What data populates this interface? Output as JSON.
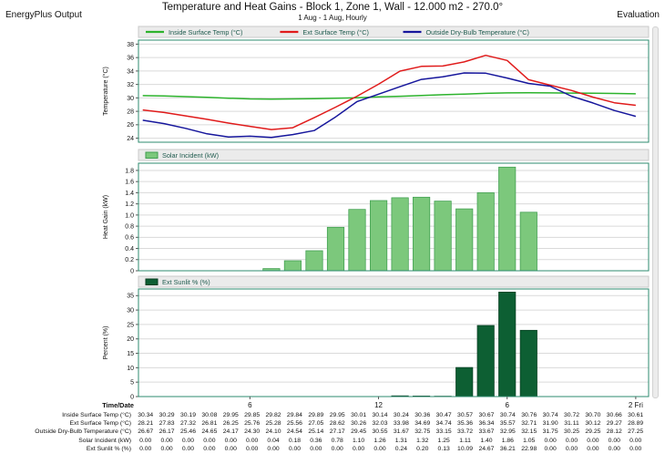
{
  "header": {
    "app_label": "EnergyPlus Output",
    "title": "Temperature and Heat Gains - Block 1, Zone 1, Wall - 12.000 m2 - 270.0°",
    "subtitle": "1 Aug - 1 Aug, Hourly",
    "right_label": "Evaluation"
  },
  "colors": {
    "inside_surface": "#2db32d",
    "ext_surface": "#e01b1b",
    "outside_drybulb": "#16169c",
    "solar_fill": "#7cc87c",
    "solar_border": "#3f9e4f",
    "sunlit_fill": "#0d5f33",
    "sunlit_border": "#083f22",
    "frame": "#2e8b6f",
    "grid": "#dadada",
    "legend_bg": "#ebebeb",
    "legend_border": "#c9c9c9",
    "legend_text": "#1f5b4e"
  },
  "xaxis": {
    "label": "Time/Date",
    "ticks": [
      {
        "hour": 6,
        "label": "6"
      },
      {
        "hour": 12,
        "label": "12"
      },
      {
        "hour": 18,
        "label": "6"
      },
      {
        "hour": 24,
        "label": "2 Fri"
      }
    ]
  },
  "chart_data": [
    {
      "type": "line",
      "ylabel": "Temperature (°C)",
      "ylim": [
        23.4,
        38.6
      ],
      "yticks": [
        24,
        26,
        28,
        30,
        32,
        34,
        36,
        38
      ],
      "ytick_labels": [
        "24",
        "26",
        "28",
        "30",
        "32",
        "34",
        "36",
        "38"
      ],
      "x_hours": [
        1,
        2,
        3,
        4,
        5,
        6,
        7,
        8,
        9,
        10,
        11,
        12,
        13,
        14,
        15,
        16,
        17,
        18,
        19,
        20,
        21,
        22,
        23,
        24
      ],
      "series": [
        {
          "name": "Inside Surface Temp (°C)",
          "color_key": "inside_surface",
          "values": [
            30.34,
            30.29,
            30.19,
            30.08,
            29.95,
            29.85,
            29.82,
            29.84,
            29.89,
            29.95,
            30.01,
            30.14,
            30.24,
            30.36,
            30.47,
            30.57,
            30.67,
            30.74,
            30.76,
            30.74,
            30.72,
            30.7,
            30.66,
            30.61
          ]
        },
        {
          "name": "Ext Surface Temp (°C)",
          "color_key": "ext_surface",
          "values": [
            28.21,
            27.83,
            27.32,
            26.81,
            26.25,
            25.76,
            25.28,
            25.56,
            27.05,
            28.62,
            30.26,
            32.03,
            33.98,
            34.69,
            34.74,
            35.36,
            36.34,
            35.57,
            32.71,
            31.9,
            31.11,
            30.12,
            29.27,
            28.89
          ]
        },
        {
          "name": "Outside Dry-Bulb Temperature (°C)",
          "color_key": "outside_drybulb",
          "values": [
            26.67,
            26.17,
            25.46,
            24.65,
            24.17,
            24.3,
            24.1,
            24.54,
            25.14,
            27.17,
            29.45,
            30.55,
            31.67,
            32.75,
            33.15,
            33.72,
            33.67,
            32.95,
            32.15,
            31.75,
            30.25,
            29.25,
            28.12,
            27.25
          ]
        }
      ]
    },
    {
      "type": "bar",
      "ylabel": "Heat Gain (kW)",
      "ylim": [
        0,
        1.93
      ],
      "yticks": [
        0,
        0.2,
        0.4,
        0.6,
        0.8,
        1.0,
        1.2,
        1.4,
        1.6,
        1.8
      ],
      "ytick_labels": [
        "0",
        "0.2",
        "0.4",
        "0.6",
        "0.8",
        "1.0",
        "1.2",
        "1.4",
        "1.6",
        "1.8"
      ],
      "x_hours": [
        1,
        2,
        3,
        4,
        5,
        6,
        7,
        8,
        9,
        10,
        11,
        12,
        13,
        14,
        15,
        16,
        17,
        18,
        19,
        20,
        21,
        22,
        23,
        24
      ],
      "series": [
        {
          "name": "Solar Incident (kW)",
          "color_key": "solar_fill",
          "border_key": "solar_border",
          "values": [
            0.0,
            0.0,
            0.0,
            0.0,
            0.0,
            0.0,
            0.04,
            0.18,
            0.36,
            0.78,
            1.1,
            1.26,
            1.31,
            1.32,
            1.25,
            1.11,
            1.4,
            1.86,
            1.05,
            0.0,
            0.0,
            0.0,
            0.0,
            0.0
          ]
        }
      ]
    },
    {
      "type": "bar",
      "ylabel": "Percent (%)",
      "ylim": [
        0,
        37.3
      ],
      "yticks": [
        0,
        5,
        10,
        15,
        20,
        25,
        30,
        35
      ],
      "ytick_labels": [
        "0",
        "5",
        "10",
        "15",
        "20",
        "25",
        "30",
        "35"
      ],
      "x_hours": [
        1,
        2,
        3,
        4,
        5,
        6,
        7,
        8,
        9,
        10,
        11,
        12,
        13,
        14,
        15,
        16,
        17,
        18,
        19,
        20,
        21,
        22,
        23,
        24
      ],
      "series": [
        {
          "name": "Ext Sunlit % (%)",
          "color_key": "sunlit_fill",
          "border_key": "sunlit_border",
          "values": [
            0.0,
            0.0,
            0.0,
            0.0,
            0.0,
            0.0,
            0.0,
            0.0,
            0.0,
            0.0,
            0.0,
            0.0,
            0.24,
            0.2,
            0.13,
            10.09,
            24.67,
            36.21,
            22.98,
            0.0,
            0.0,
            0.0,
            0.0,
            0.0
          ]
        }
      ]
    }
  ],
  "table": {
    "row_labels": [
      "Inside Surface Temp (°C)",
      "Ext Surface Temp (°C)",
      "Outside Dry-Bulb Temperature (°C)",
      "Solar Incident (kW)",
      "Ext Sunlit % (%)"
    ]
  }
}
